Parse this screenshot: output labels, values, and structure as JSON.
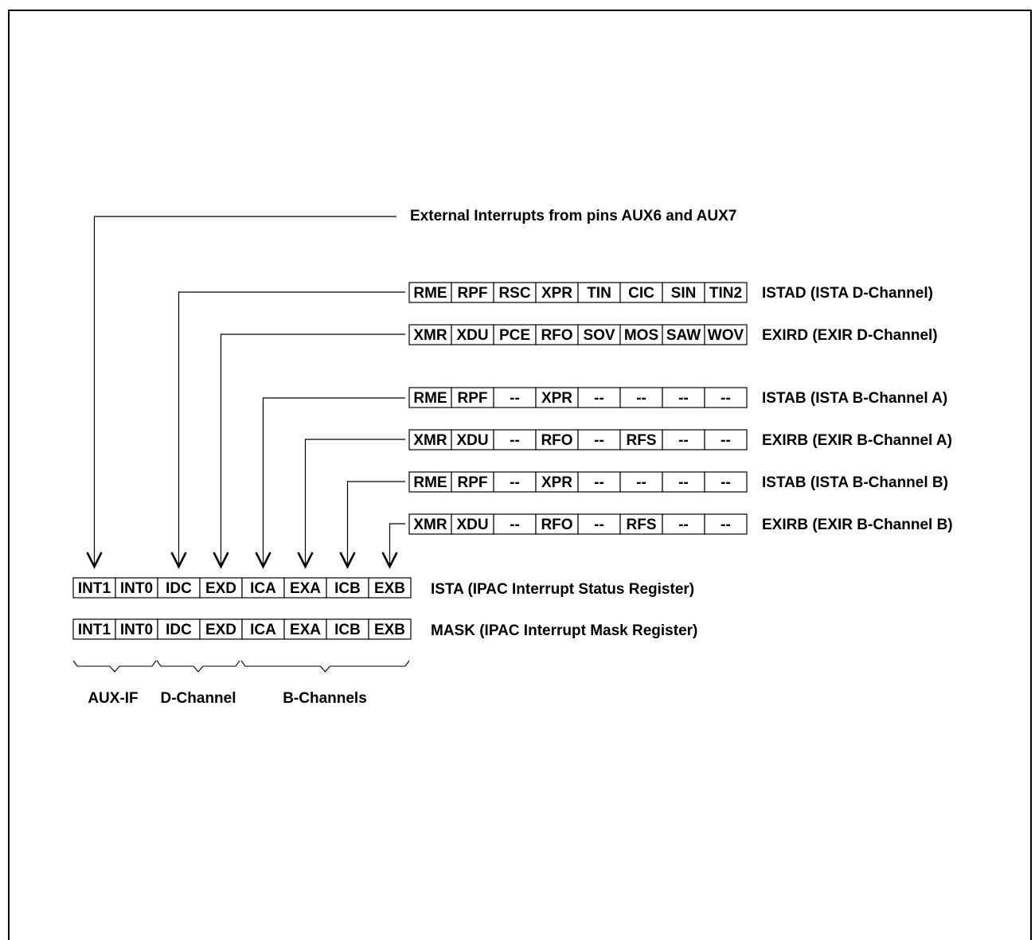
{
  "external_label": "External Interrupts from pins AUX6 and AUX7",
  "source_registers": [
    {
      "cells": [
        "RME",
        "RPF",
        "RSC",
        "XPR",
        "TIN",
        "CIC",
        "SIN",
        "TIN2"
      ],
      "label": "ISTAD  (ISTA D-Channel)"
    },
    {
      "cells": [
        "XMR",
        "XDU",
        "PCE",
        "RFO",
        "SOV",
        "MOS",
        "SAW",
        "WOV"
      ],
      "label": "EXIRD (EXIR D-Channel)"
    },
    {
      "cells": [
        "RME",
        "RPF",
        "--",
        "XPR",
        "--",
        "--",
        "--",
        "--"
      ],
      "label": "ISTAB (ISTA B-Channel A)"
    },
    {
      "cells": [
        "XMR",
        "XDU",
        "--",
        "RFO",
        "--",
        "RFS",
        "--",
        "--"
      ],
      "label": "EXIRB (EXIR B-Channel A)"
    },
    {
      "cells": [
        "RME",
        "RPF",
        "--",
        "XPR",
        "--",
        "--",
        "--",
        "--"
      ],
      "label": "ISTAB (ISTA B-Channel B)"
    },
    {
      "cells": [
        "XMR",
        "XDU",
        "--",
        "RFO",
        "--",
        "RFS",
        "--",
        "--"
      ],
      "label": "EXIRB (EXIR B-Channel B)"
    }
  ],
  "ista": {
    "cells": [
      "INT1",
      "INT0",
      "IDC",
      "EXD",
      "ICA",
      "EXA",
      "ICB",
      "EXB"
    ],
    "label": "ISTA (IPAC Interrupt Status Register)"
  },
  "mask": {
    "cells": [
      "INT1",
      "INT0",
      "IDC",
      "EXD",
      "ICA",
      "EXA",
      "ICB",
      "EXB"
    ],
    "label": "MASK (IPAC Interrupt Mask Register)"
  },
  "groups": [
    "AUX-IF",
    "D-Channel",
    "B-Channels"
  ]
}
